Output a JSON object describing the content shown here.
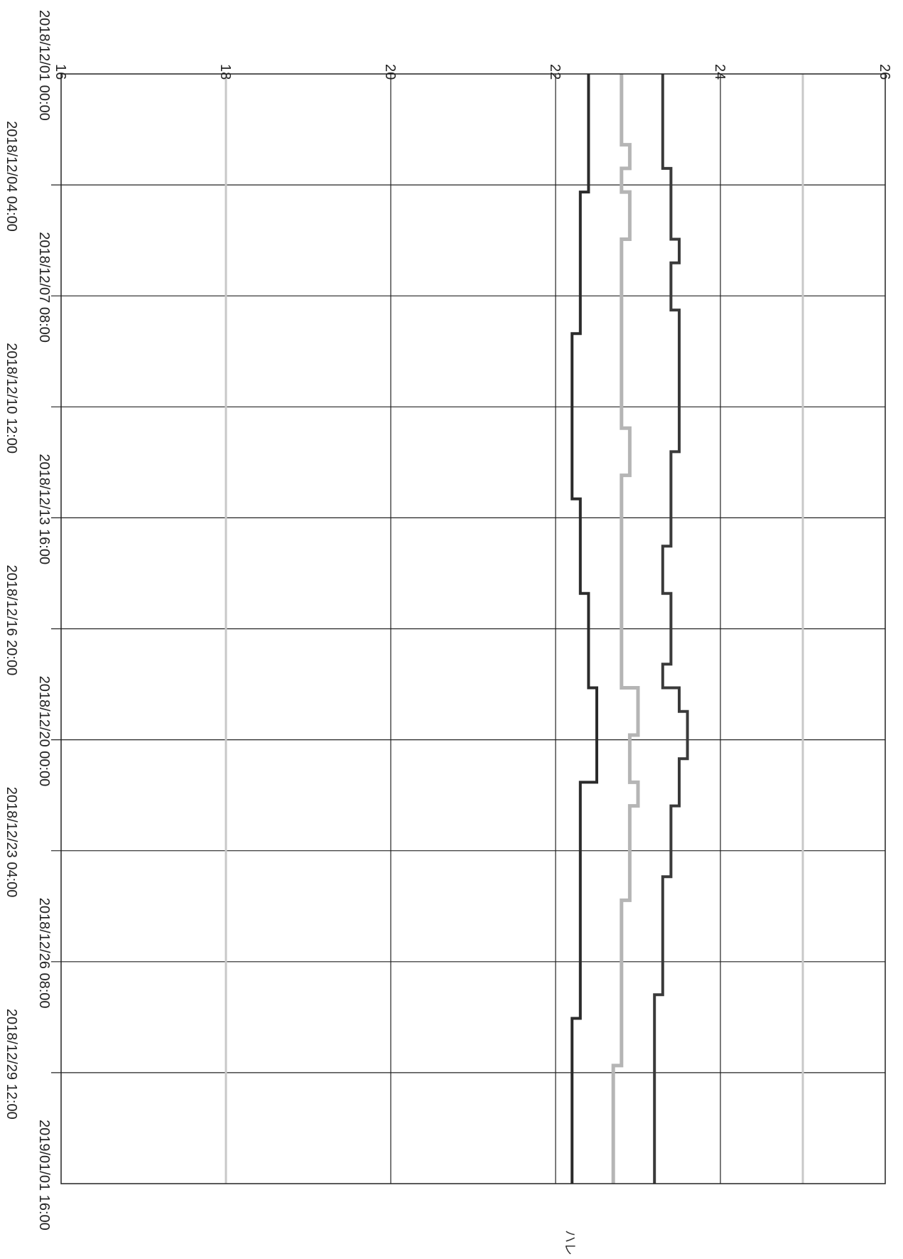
{
  "chart_data": {
    "type": "line",
    "title": "",
    "xlabel": "",
    "ylabel": "",
    "x_ticks": [
      "2018/12/01 00:00",
      "2018/12/04 04:00",
      "2018/12/07 08:00",
      "2018/12/10 12:00",
      "2018/12/13 16:00",
      "2018/12/16 20:00",
      "2018/12/20 00:00",
      "2018/12/23 04:00",
      "2018/12/26 08:00",
      "2018/12/29 12:00",
      "2019/01/01 16:00"
    ],
    "y_ticks": [
      16,
      18,
      20,
      22,
      24,
      26
    ],
    "ylim": [
      16,
      26
    ],
    "grid": true,
    "gray_reference_lines_at": [
      18,
      25
    ],
    "annotation": "ハレ",
    "colors": {
      "min_series": "#2b2b2b",
      "mean_series": "#b5b5b5",
      "max_series": "#3a3a3a",
      "grid": "#222222",
      "reference": "#c8c8c8"
    },
    "series": [
      {
        "values": [
          22.4,
          22.4,
          22.4,
          22.4,
          22.4,
          22.3,
          22.3,
          22.3,
          22.3,
          22.3,
          22.3,
          22.2,
          22.2,
          22.2,
          22.2,
          22.2,
          22.2,
          22.2,
          22.3,
          22.3,
          22.3,
          22.3,
          22.4,
          22.4,
          22.4,
          22.4,
          22.5,
          22.5,
          22.5,
          22.5,
          22.3,
          22.3,
          22.3,
          22.3,
          22.3,
          22.3,
          22.3,
          22.3,
          22.3,
          22.3,
          22.2,
          22.2,
          22.2,
          22.2,
          22.2,
          22.2,
          22.2
        ]
      },
      {
        "values": [
          22.8,
          22.8,
          22.8,
          22.9,
          22.8,
          22.9,
          22.9,
          22.8,
          22.8,
          22.8,
          22.8,
          22.8,
          22.8,
          22.8,
          22.8,
          22.9,
          22.9,
          22.8,
          22.8,
          22.8,
          22.8,
          22.8,
          22.8,
          22.8,
          22.8,
          22.8,
          23.0,
          23.0,
          22.9,
          22.9,
          23.0,
          22.9,
          22.9,
          22.9,
          22.9,
          22.8,
          22.8,
          22.8,
          22.8,
          22.8,
          22.8,
          22.8,
          22.7,
          22.7,
          22.7,
          22.7,
          22.7
        ]
      },
      {
        "values": [
          23.3,
          23.3,
          23.3,
          23.3,
          23.4,
          23.4,
          23.4,
          23.5,
          23.4,
          23.4,
          23.5,
          23.5,
          23.5,
          23.5,
          23.5,
          23.5,
          23.4,
          23.4,
          23.4,
          23.4,
          23.3,
          23.3,
          23.4,
          23.4,
          23.4,
          23.3,
          23.5,
          23.6,
          23.6,
          23.5,
          23.5,
          23.4,
          23.4,
          23.4,
          23.3,
          23.3,
          23.3,
          23.3,
          23.3,
          23.2,
          23.2,
          23.2,
          23.2,
          23.2,
          23.2,
          23.2,
          23.2
        ]
      }
    ]
  }
}
